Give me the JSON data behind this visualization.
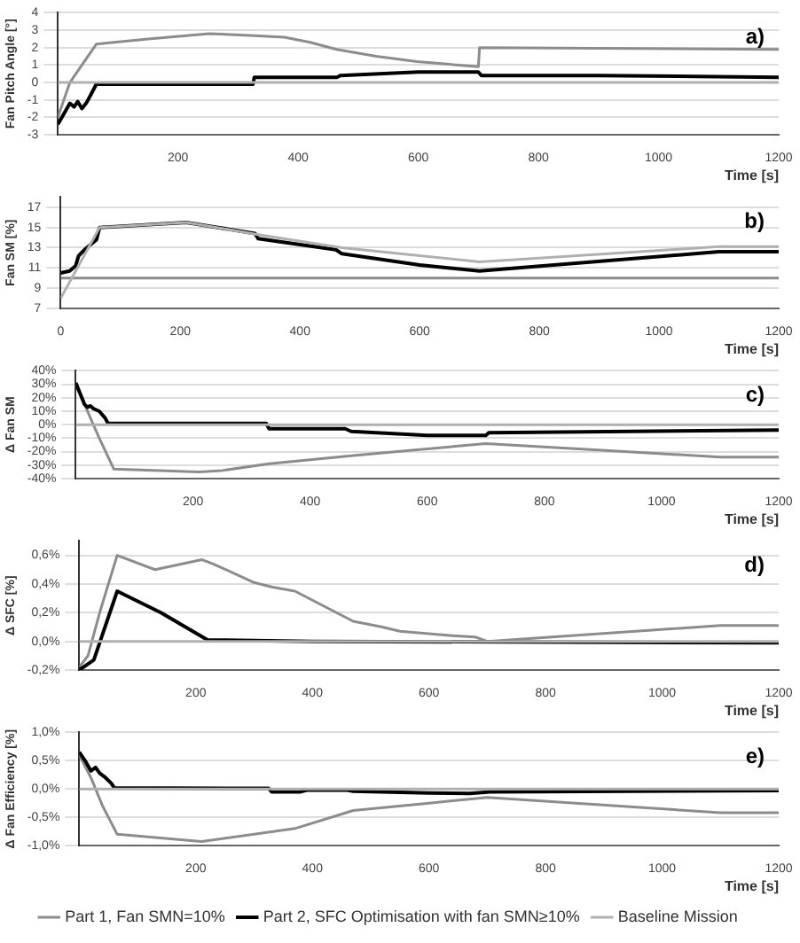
{
  "chart_data": [
    {
      "type": "line",
      "annotations": [
        "a)"
      ],
      "xlabel": "Time [s]",
      "ylabel": "Fan Pitch Angle [°]",
      "xlim": [
        0,
        1200
      ],
      "xticks": [
        200,
        400,
        600,
        800,
        1000,
        1200
      ],
      "ylim": [
        -3,
        4
      ],
      "yticks": [
        -3,
        -2,
        -1,
        0,
        1,
        2,
        3,
        4
      ],
      "grid": "y",
      "legend": false,
      "marker": "none",
      "line_style": "solid",
      "series": [
        {
          "color": "#8c8c8c",
          "x": [
            0,
            20,
            40,
            64,
            150,
            252,
            320,
            377,
            420,
            464,
            530,
            598,
            700,
            702,
            1200
          ],
          "values": [
            -2.0,
            0,
            1.0,
            2.2,
            2.5,
            2.8,
            2.7,
            2.6,
            2.3,
            1.9,
            1.5,
            1.2,
            0.9,
            2.0,
            1.9
          ]
        },
        {
          "color": "#000000",
          "x": [
            0,
            10,
            20,
            27,
            33,
            40,
            47,
            55,
            64,
            325,
            327,
            465,
            470,
            600,
            700,
            705,
            900,
            1200
          ],
          "values": [
            -2.4,
            -1.8,
            -1.2,
            -1.4,
            -1.1,
            -1.5,
            -1.2,
            -0.7,
            -0.1,
            -0.1,
            0.3,
            0.3,
            0.4,
            0.6,
            0.6,
            0.4,
            0.4,
            0.3
          ]
        },
        {
          "color": "#b0b0b0",
          "x": [
            0,
            1200
          ],
          "values": [
            0,
            0
          ]
        }
      ]
    },
    {
      "type": "line",
      "annotations": [
        "b)"
      ],
      "xlabel": "Time [s]",
      "ylabel": "Fan SM [%]",
      "xlim": [
        0,
        1200
      ],
      "xticks": [
        0,
        200,
        400,
        600,
        800,
        1000,
        1200
      ],
      "ylim": [
        7,
        18
      ],
      "yticks": [
        7,
        9,
        11,
        13,
        15,
        17
      ],
      "grid": "y",
      "legend": false,
      "marker": "none",
      "line_style": "solid",
      "series": [
        {
          "color": "#8c8c8c",
          "x": [
            0,
            1200
          ],
          "values": [
            10,
            10
          ]
        },
        {
          "color": "#000000",
          "x": [
            0,
            15,
            25,
            30,
            40,
            50,
            60,
            65,
            210,
            325,
            330,
            460,
            470,
            600,
            700,
            1100,
            1200
          ],
          "values": [
            10.5,
            10.7,
            11.2,
            12.2,
            12.8,
            13.3,
            13.8,
            15,
            15.5,
            14.4,
            13.9,
            12.8,
            12.4,
            11.3,
            10.7,
            12.6,
            12.6
          ]
        },
        {
          "color": "#b0b0b0",
          "x": [
            0,
            65,
            210,
            330,
            470,
            700,
            1100,
            1200
          ],
          "values": [
            8,
            15,
            15.5,
            14.3,
            13,
            11.6,
            13.1,
            13.1
          ]
        }
      ]
    },
    {
      "type": "line",
      "annotations": [
        "c)"
      ],
      "xlabel": "Time [s]",
      "ylabel": "Δ Fan SM",
      "xlim": [
        0,
        1200
      ],
      "xticks": [
        200,
        400,
        600,
        800,
        1000,
        1200
      ],
      "ylim": [
        -40,
        40
      ],
      "yticks": [
        {
          "value": -40,
          "label": "-40%"
        },
        {
          "value": -30,
          "label": "-30%"
        },
        {
          "value": -20,
          "label": "-20%"
        },
        {
          "value": -10,
          "label": "-10%"
        },
        {
          "value": 0,
          "label": "0%"
        },
        {
          "value": 10,
          "label": "10%"
        },
        {
          "value": 20,
          "label": "20%"
        },
        {
          "value": 30,
          "label": "30%"
        },
        {
          "value": 40,
          "label": "40%"
        }
      ],
      "grid": "y",
      "legend": false,
      "marker": "none",
      "line_style": "solid",
      "series": [
        {
          "color": "#8c8c8c",
          "x": [
            0,
            20,
            40,
            65,
            210,
            250,
            330,
            470,
            700,
            1100,
            1200
          ],
          "values": [
            30,
            10,
            -10,
            -33,
            -35,
            -34,
            -29,
            -23,
            -14,
            -24,
            -24
          ]
        },
        {
          "color": "#000000",
          "x": [
            0,
            15,
            20,
            25,
            30,
            40,
            50,
            55,
            64,
            325,
            330,
            460,
            470,
            600,
            700,
            705,
            1200
          ],
          "values": [
            31,
            15,
            13,
            14,
            12,
            10,
            5,
            1,
            1,
            1,
            -3,
            -3,
            -5,
            -8,
            -8,
            -6,
            -4
          ]
        },
        {
          "color": "#b0b0b0",
          "x": [
            0,
            1200
          ],
          "values": [
            0,
            0
          ]
        }
      ]
    },
    {
      "type": "line",
      "annotations": [
        "d)"
      ],
      "xlabel": "Time [s]",
      "ylabel": "Δ SFC [%]",
      "xlim": [
        0,
        1200
      ],
      "xticks": [
        200,
        400,
        600,
        800,
        1000,
        1200
      ],
      "ylim": [
        -0.2,
        0.7
      ],
      "yticks": [
        {
          "value": -0.2,
          "label": "-0,2%"
        },
        {
          "value": 0,
          "label": "0,0%"
        },
        {
          "value": 0.2,
          "label": "0,2%"
        },
        {
          "value": 0.4,
          "label": "0,4%"
        },
        {
          "value": 0.6,
          "label": "0,6%"
        }
      ],
      "grid": "y",
      "legend": false,
      "marker": "none",
      "line_style": "solid",
      "series": [
        {
          "color": "#8c8c8c",
          "x": [
            0,
            15,
            35,
            65,
            130,
            210,
            230,
            300,
            330,
            370,
            470,
            520,
            550,
            640,
            680,
            700,
            1100,
            1200
          ],
          "values": [
            -0.18,
            -0.1,
            0.2,
            0.6,
            0.5,
            0.57,
            0.54,
            0.41,
            0.38,
            0.35,
            0.14,
            0.1,
            0.07,
            0.04,
            0.03,
            0,
            0.11,
            0.11
          ]
        },
        {
          "color": "#000000",
          "x": [
            0,
            25,
            65,
            140,
            220,
            400,
            1200
          ],
          "values": [
            -0.2,
            -0.13,
            0.35,
            0.2,
            0.01,
            0,
            -0.01
          ]
        },
        {
          "color": "#b0b0b0",
          "x": [
            0,
            1200
          ],
          "values": [
            0,
            0
          ]
        }
      ]
    },
    {
      "type": "line",
      "annotations": [
        "e)"
      ],
      "xlabel": "Time [s]",
      "ylabel": "Δ Fan Efficiency [%]",
      "xlim": [
        0,
        1200
      ],
      "xticks": [
        200,
        400,
        600,
        800,
        1000,
        1200
      ],
      "ylim": [
        -1,
        1
      ],
      "yticks": [
        {
          "value": -1,
          "label": "-1,0%"
        },
        {
          "value": -0.5,
          "label": "-0,5%"
        },
        {
          "value": 0,
          "label": "0,0%"
        },
        {
          "value": 0.5,
          "label": "0,5%"
        },
        {
          "value": 1,
          "label": "1,0%"
        }
      ],
      "grid": "y",
      "legend": "bottom",
      "marker": "none",
      "line_style": "solid",
      "series": [
        {
          "name": "Part 1, Fan SMN=10%",
          "color": "#8c8c8c",
          "x": [
            0,
            20,
            40,
            65,
            210,
            300,
            370,
            470,
            600,
            700,
            1100,
            1200
          ],
          "values": [
            0.6,
            0.2,
            -0.3,
            -0.8,
            -0.93,
            -0.8,
            -0.7,
            -0.38,
            -0.25,
            -0.15,
            -0.42,
            -0.42
          ]
        },
        {
          "name": "Part 2, SFC Optimisation with fan SMN≥10%",
          "color": "#000000",
          "x": [
            0,
            10,
            20,
            28,
            35,
            45,
            55,
            60,
            325,
            330,
            380,
            390,
            460,
            470,
            600,
            670,
            705,
            1200
          ],
          "values": [
            0.65,
            0.5,
            0.32,
            0.38,
            0.28,
            0.2,
            0.1,
            0.02,
            0.01,
            -0.05,
            -0.05,
            -0.02,
            -0.02,
            -0.04,
            -0.07,
            -0.08,
            -0.05,
            -0.03
          ]
        },
        {
          "name": "Baseline Mission",
          "color": "#b0b0b0",
          "x": [
            0,
            1200
          ],
          "values": [
            0,
            0
          ]
        }
      ]
    }
  ]
}
